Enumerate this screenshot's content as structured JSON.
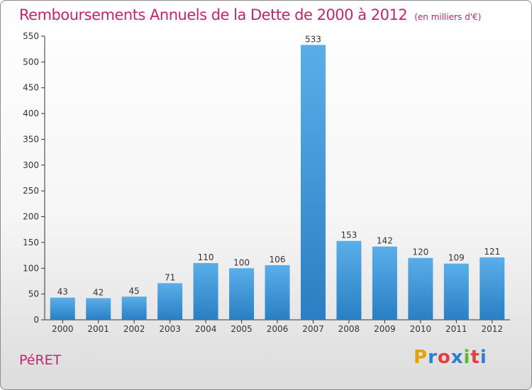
{
  "header": {
    "title": "Remboursements Annuels de la Dette de 2000 à 2012",
    "subtitle": "(en milliers d'€)"
  },
  "footer": {
    "commune": "PéRET",
    "logo_text": "Proxiti",
    "logo_colors": [
      "#e8a100",
      "#2e7fd0",
      "#e33f3f",
      "#2e7fd0",
      "#5cb82e",
      "#e33f3f",
      "#2e7fd0"
    ]
  },
  "chart_data": {
    "type": "bar",
    "title": "Remboursements Annuels de la Dette de 2000 à 2012",
    "subtitle": "(en milliers d'€)",
    "categories": [
      "2000",
      "2001",
      "2002",
      "2003",
      "2004",
      "2005",
      "2006",
      "2007",
      "2008",
      "2009",
      "2010",
      "2011",
      "2012"
    ],
    "values": [
      43,
      42,
      45,
      71,
      110,
      100,
      106,
      533,
      153,
      142,
      120,
      109,
      121
    ],
    "ylim": [
      0,
      550
    ],
    "yticks": [
      0,
      50,
      100,
      150,
      200,
      250,
      300,
      350,
      400,
      450,
      500,
      550
    ],
    "grid": false,
    "bar_color_top": "#5aaee8",
    "bar_color_bottom": "#2a7fc4",
    "title_color": "#c4246e"
  }
}
